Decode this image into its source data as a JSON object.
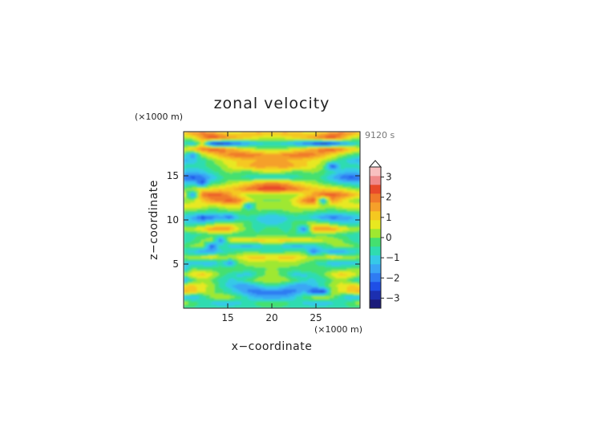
{
  "chart_data": {
    "type": "heatmap",
    "title": "zonal velocity",
    "xlabel": "x−coordinate",
    "ylabel": "z−coordinate",
    "x_unit": "(×1000 m)",
    "y_unit": "(×1000 m)",
    "time_label": "9120 s",
    "xlim": [
      10,
      30
    ],
    "ylim": [
      0,
      20
    ],
    "x_ticks": [
      "15",
      "20",
      "25"
    ],
    "y_ticks": [
      "5",
      "10",
      "15"
    ],
    "x_tick_values": [
      15,
      20,
      25
    ],
    "y_tick_values": [
      5,
      10,
      15
    ],
    "colorbar": {
      "range": [
        -3.5,
        3.5
      ],
      "step": 0.5,
      "tick_labels": [
        "3",
        "2",
        "1",
        "0",
        "−1",
        "−2",
        "−3"
      ],
      "tick_values": [
        3,
        2,
        1,
        0,
        -1,
        -2,
        -3
      ],
      "colors": [
        "#1a1a7a",
        "#1c2fb0",
        "#1f4fe6",
        "#2f7cf2",
        "#3aa6f5",
        "#36c9e8",
        "#2fdcb0",
        "#44e070",
        "#9fe830",
        "#e8e820",
        "#f5c820",
        "#f5a02a",
        "#f07a2a",
        "#e84a2a",
        "#f08a8a",
        "#f8c0c0"
      ]
    }
  }
}
